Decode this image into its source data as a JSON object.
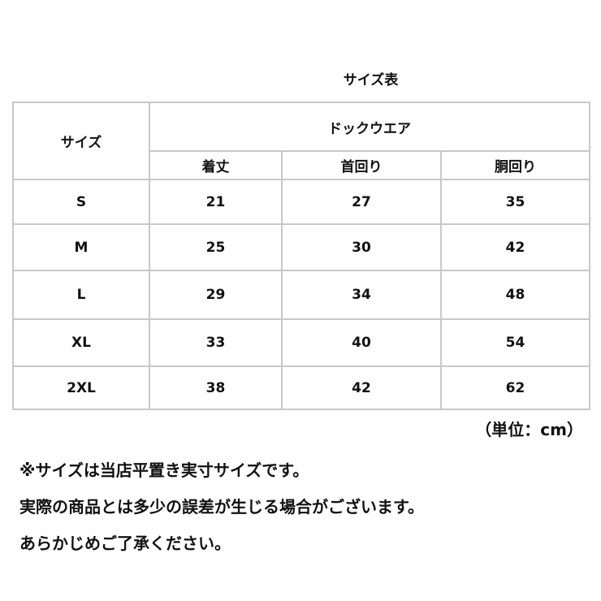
{
  "title": "サイズ表",
  "table": {
    "size_header": "サイズ",
    "group_header": "ドックウエア",
    "columns": [
      "着丈",
      "首回り",
      "胴回り"
    ],
    "rows": [
      {
        "size": "S",
        "values": [
          "21",
          "27",
          "35"
        ]
      },
      {
        "size": "M",
        "values": [
          "25",
          "30",
          "42"
        ]
      },
      {
        "size": "L",
        "values": [
          "29",
          "34",
          "48"
        ]
      },
      {
        "size": "XL",
        "values": [
          "33",
          "40",
          "54"
        ]
      },
      {
        "size": "2XL",
        "values": [
          "38",
          "42",
          "62"
        ]
      }
    ]
  },
  "unit": "（単位：cm）",
  "notes": [
    "※サイズは当店平置き実寸サイズです。",
    "実際の商品とは多少の誤差が生じる場合がございます。",
    "あらかじめご了承ください。"
  ]
}
